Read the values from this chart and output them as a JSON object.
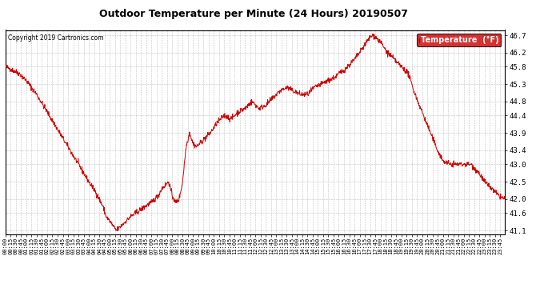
{
  "title": "Outdoor Temperature per Minute (24 Hours) 20190507",
  "copyright_text": "Copyright 2019 Cartronics.com",
  "legend_label": "Temperature  (°F)",
  "line_color": "#cc0000",
  "background_color": "#ffffff",
  "grid_color": "#999999",
  "legend_bg": "#cc0000",
  "legend_text_color": "#ffffff",
  "ylim": [
    41.0,
    46.85
  ],
  "yticks": [
    41.1,
    41.6,
    42.0,
    42.5,
    43.0,
    43.4,
    43.9,
    44.4,
    44.8,
    45.3,
    45.8,
    46.2,
    46.7
  ],
  "total_minutes": 1440
}
